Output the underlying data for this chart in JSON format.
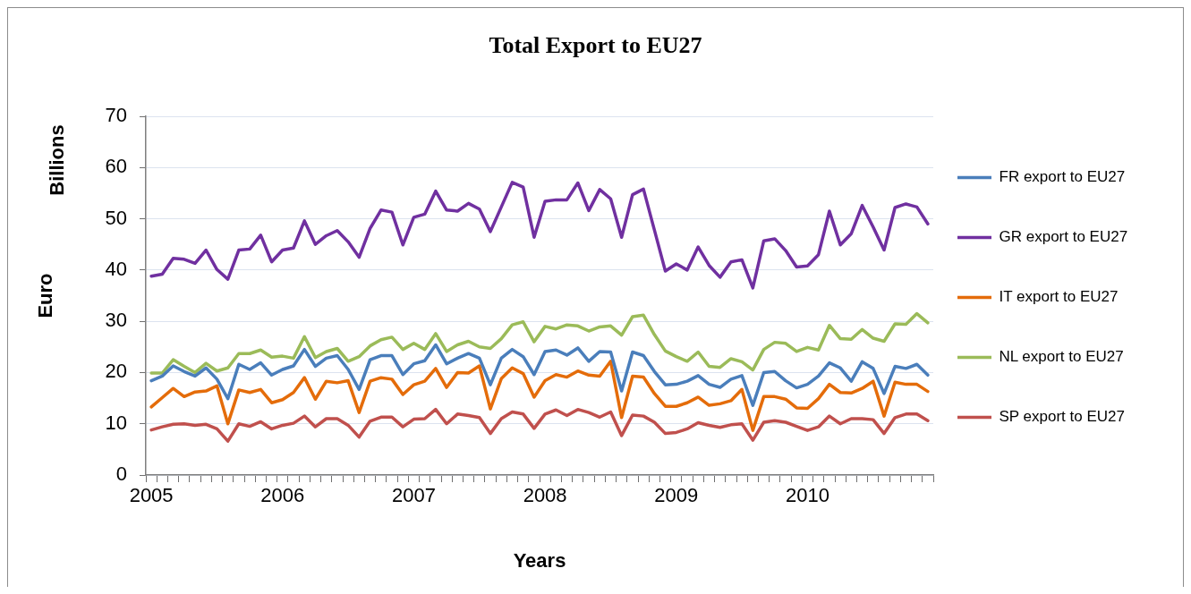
{
  "chart_data": {
    "type": "line",
    "title": "Total Export to EU27",
    "xlabel": "Years",
    "ylabel": "Euro",
    "annotations": [
      "Billions"
    ],
    "categories": [
      "2005",
      null,
      null,
      null,
      null,
      null,
      null,
      null,
      null,
      null,
      null,
      null,
      "2006",
      null,
      null,
      null,
      null,
      null,
      null,
      null,
      null,
      null,
      null,
      null,
      "2007",
      null,
      null,
      null,
      null,
      null,
      null,
      null,
      null,
      null,
      null,
      null,
      "2008",
      null,
      null,
      null,
      null,
      null,
      null,
      null,
      null,
      null,
      null,
      null,
      "2009",
      null,
      null,
      null,
      null,
      null,
      null,
      null,
      null,
      null,
      null,
      null,
      "2010",
      null,
      null,
      null,
      null,
      null,
      null,
      null,
      null,
      null,
      null,
      null
    ],
    "series": [
      {
        "name": "FR export to EU27",
        "color": "#4a7ebb",
        "values": [
          18.4,
          19.3,
          21.3,
          20.2,
          19.3,
          20.9,
          18.7,
          14.9,
          21.6,
          20.6,
          21.9,
          19.5,
          20.6,
          21.3,
          24.5,
          21.2,
          22.8,
          23.3,
          20.6,
          16.7,
          22.5,
          23.3,
          23.3,
          19.6,
          21.7,
          22.3,
          25.4,
          21.7,
          22.8,
          23.7,
          22.8,
          17.6,
          22.8,
          24.5,
          23.1,
          19.6,
          24.1,
          24.4,
          23.4,
          24.8,
          22.2,
          24.1,
          24.0,
          16.4,
          24.0,
          23.3,
          20.2,
          17.6,
          17.7,
          18.3,
          19.4,
          17.7,
          17.1,
          18.7,
          19.4,
          13.6,
          20.0,
          20.2,
          18.4,
          17.0,
          17.7,
          19.3,
          21.9,
          20.9,
          18.3,
          22.1,
          20.8,
          15.9,
          21.2,
          20.8,
          21.6,
          19.5
        ]
      },
      {
        "name": "GR export to EU27",
        "color": "#7030a0",
        "values": [
          38.8,
          39.2,
          42.3,
          42.1,
          41.3,
          43.9,
          40.1,
          38.2,
          43.9,
          44.1,
          46.8,
          41.6,
          43.9,
          44.3,
          49.6,
          45.0,
          46.7,
          47.7,
          45.5,
          42.5,
          48.1,
          51.7,
          51.3,
          44.9,
          50.3,
          50.9,
          55.4,
          51.7,
          51.5,
          53.0,
          51.9,
          47.5,
          52.3,
          57.1,
          56.2,
          46.4,
          53.4,
          53.7,
          53.7,
          57.0,
          51.6,
          55.7,
          53.9,
          46.4,
          54.7,
          55.8,
          47.8,
          39.8,
          41.2,
          40.0,
          44.5,
          40.9,
          38.6,
          41.6,
          42.0,
          36.5,
          45.7,
          46.1,
          43.8,
          40.6,
          40.8,
          43.0,
          51.5,
          44.9,
          47.1,
          52.6,
          48.4,
          43.9,
          52.2,
          52.9,
          52.3,
          49.0
        ]
      },
      {
        "name": "IT export to EU27",
        "color": "#e46c0a",
        "values": [
          13.3,
          15.1,
          16.9,
          15.3,
          16.2,
          16.4,
          17.4,
          10.0,
          16.6,
          16.1,
          16.7,
          14.1,
          14.7,
          16.1,
          19.0,
          14.8,
          18.3,
          18.0,
          18.4,
          12.2,
          18.3,
          19.0,
          18.7,
          15.7,
          17.6,
          18.3,
          20.8,
          17.1,
          20.0,
          19.9,
          21.3,
          12.9,
          18.8,
          20.9,
          19.8,
          15.2,
          18.4,
          19.6,
          19.1,
          20.3,
          19.5,
          19.3,
          22.2,
          11.2,
          19.3,
          19.1,
          15.9,
          13.4,
          13.4,
          14.1,
          15.2,
          13.6,
          13.9,
          14.5,
          16.7,
          8.7,
          15.3,
          15.3,
          14.8,
          13.1,
          13.0,
          14.9,
          17.7,
          16.1,
          16.0,
          16.9,
          18.3,
          11.5,
          18.1,
          17.7,
          17.7,
          16.3
        ]
      },
      {
        "name": "NL export to EU27",
        "color": "#9bbb59",
        "values": [
          19.9,
          19.9,
          22.5,
          21.2,
          20.0,
          21.8,
          20.3,
          20.9,
          23.7,
          23.7,
          24.4,
          23.0,
          23.2,
          22.8,
          27.0,
          22.9,
          24.1,
          24.7,
          22.2,
          23.1,
          25.2,
          26.4,
          26.9,
          24.5,
          25.7,
          24.5,
          27.6,
          24.1,
          25.4,
          26.1,
          25.0,
          24.7,
          26.6,
          29.3,
          29.9,
          26.0,
          29.0,
          28.5,
          29.3,
          29.1,
          28.1,
          28.9,
          29.1,
          27.3,
          30.9,
          31.2,
          27.4,
          24.2,
          23.1,
          22.2,
          24.0,
          21.2,
          21.0,
          22.7,
          22.1,
          20.5,
          24.5,
          25.9,
          25.7,
          24.1,
          24.9,
          24.4,
          29.2,
          26.6,
          26.5,
          28.4,
          26.7,
          26.1,
          29.5,
          29.4,
          31.5,
          29.7
        ]
      },
      {
        "name": "SP export to EU27",
        "color": "#c0504d",
        "values": [
          8.8,
          9.4,
          9.9,
          10.0,
          9.7,
          9.9,
          9.0,
          6.6,
          10.0,
          9.5,
          10.4,
          9.0,
          9.7,
          10.1,
          11.5,
          9.4,
          11.0,
          11.0,
          9.7,
          7.4,
          10.5,
          11.3,
          11.3,
          9.4,
          10.9,
          11.0,
          12.8,
          10.0,
          11.9,
          11.6,
          11.2,
          8.1,
          11.0,
          12.3,
          11.9,
          9.1,
          11.9,
          12.7,
          11.6,
          12.8,
          12.2,
          11.3,
          12.3,
          7.7,
          11.7,
          11.5,
          10.3,
          8.1,
          8.3,
          9.0,
          10.2,
          9.7,
          9.3,
          9.8,
          10.0,
          6.8,
          10.3,
          10.6,
          10.3,
          9.5,
          8.7,
          9.4,
          11.5,
          10.0,
          11.0,
          11.0,
          10.8,
          8.1,
          11.2,
          11.9,
          11.9,
          10.6
        ]
      }
    ],
    "ylim": [
      0,
      70
    ],
    "yticks": [
      0,
      10,
      20,
      30,
      40,
      50,
      60,
      70
    ],
    "grid": "y",
    "legend": "right",
    "marker": "none",
    "line_style": "solid"
  }
}
